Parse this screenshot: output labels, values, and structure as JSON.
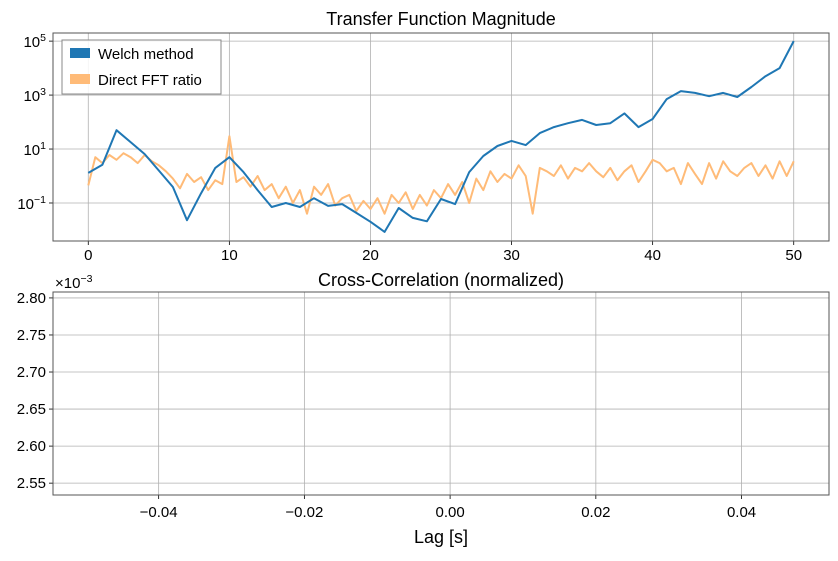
{
  "chart_data": [
    {
      "type": "line",
      "title": "Transfer Function Magnitude",
      "xlabel": "",
      "ylabel": "",
      "xlim": [
        -2.5,
        52.5
      ],
      "ylim": [
        0.0039,
        200000
      ],
      "yscale": "log",
      "grid": true,
      "legend": "top-left",
      "x_ticks": [
        0,
        10,
        20,
        30,
        40,
        50
      ],
      "y_ticks": [
        {
          "base": "10",
          "exp": "5",
          "value": 100000
        },
        {
          "base": "10",
          "exp": "3",
          "value": 1000
        },
        {
          "base": "10",
          "exp": "1",
          "value": 10
        },
        {
          "base": "10",
          "exp": "−1",
          "value": 0.1
        }
      ],
      "series": [
        {
          "name": "Welch method",
          "color": "#1f77b4",
          "x_start": 0,
          "x_step": 1,
          "values": [
            1.3,
            2.6,
            50,
            18,
            6.5,
            1.6,
            0.39,
            0.023,
            0.23,
            2.0,
            5.0,
            1.4,
            0.3,
            0.071,
            0.1,
            0.071,
            0.15,
            0.078,
            0.091,
            0.043,
            0.02,
            0.0085,
            0.065,
            0.028,
            0.021,
            0.14,
            0.091,
            1.4,
            5.5,
            13,
            20,
            14,
            39,
            65,
            91,
            120,
            78,
            91,
            210,
            65,
            130,
            710,
            1400,
            1200,
            910,
            1200,
            850,
            2000,
            5000,
            10000,
            100000
          ]
        },
        {
          "name": "Direct FFT ratio",
          "color": "#ffbb78",
          "x_start": 0,
          "x_step": 0.5,
          "values": [
            0.45,
            5,
            3,
            6,
            4,
            7,
            5,
            3,
            6,
            3.5,
            2.5,
            1.5,
            0.8,
            0.35,
            1.2,
            0.6,
            0.9,
            0.3,
            0.7,
            0.5,
            30,
            0.6,
            0.9,
            0.4,
            1.0,
            0.3,
            0.5,
            0.15,
            0.4,
            0.1,
            0.3,
            0.04,
            0.4,
            0.2,
            0.5,
            0.08,
            0.15,
            0.2,
            0.05,
            0.12,
            0.06,
            0.15,
            0.04,
            0.2,
            0.1,
            0.25,
            0.06,
            0.2,
            0.08,
            0.3,
            0.15,
            0.5,
            0.2,
            0.6,
            0.1,
            0.8,
            0.3,
            1.5,
            0.6,
            1.2,
            0.8,
            2.5,
            1.0,
            0.04,
            2.0,
            1.5,
            1.0,
            2.5,
            0.8,
            2.0,
            1.5,
            3.0,
            1.5,
            0.9,
            2.0,
            0.7,
            1.5,
            2.5,
            0.6,
            1.5,
            4,
            3,
            1.5,
            2.0,
            0.5,
            3.0,
            1.2,
            0.5,
            3.0,
            0.8,
            3.5,
            1.5,
            1.0,
            2.0,
            3,
            1.0,
            2.5,
            0.8,
            3.5,
            1.0,
            3.5
          ]
        }
      ]
    },
    {
      "type": "line",
      "title": "Cross-Correlation (normalized)",
      "xlabel": "Lag [s]",
      "ylabel": "",
      "offset_text": {
        "base": "×10",
        "exp": "−3"
      },
      "xlim": [
        -0.0545,
        0.052
      ],
      "ylim": [
        2.534,
        2.808
      ],
      "grid": true,
      "x_ticks": [
        "−0.04",
        "−0.02",
        "0.00",
        "0.02",
        "0.04"
      ],
      "x_tick_values": [
        -0.04,
        -0.02,
        0,
        0.02,
        0.04
      ],
      "y_ticks": [
        "2.55",
        "2.60",
        "2.65",
        "2.70",
        "2.75",
        "2.80"
      ],
      "y_tick_values": [
        2.55,
        2.6,
        2.65,
        2.7,
        2.75,
        2.8
      ],
      "series": []
    }
  ]
}
